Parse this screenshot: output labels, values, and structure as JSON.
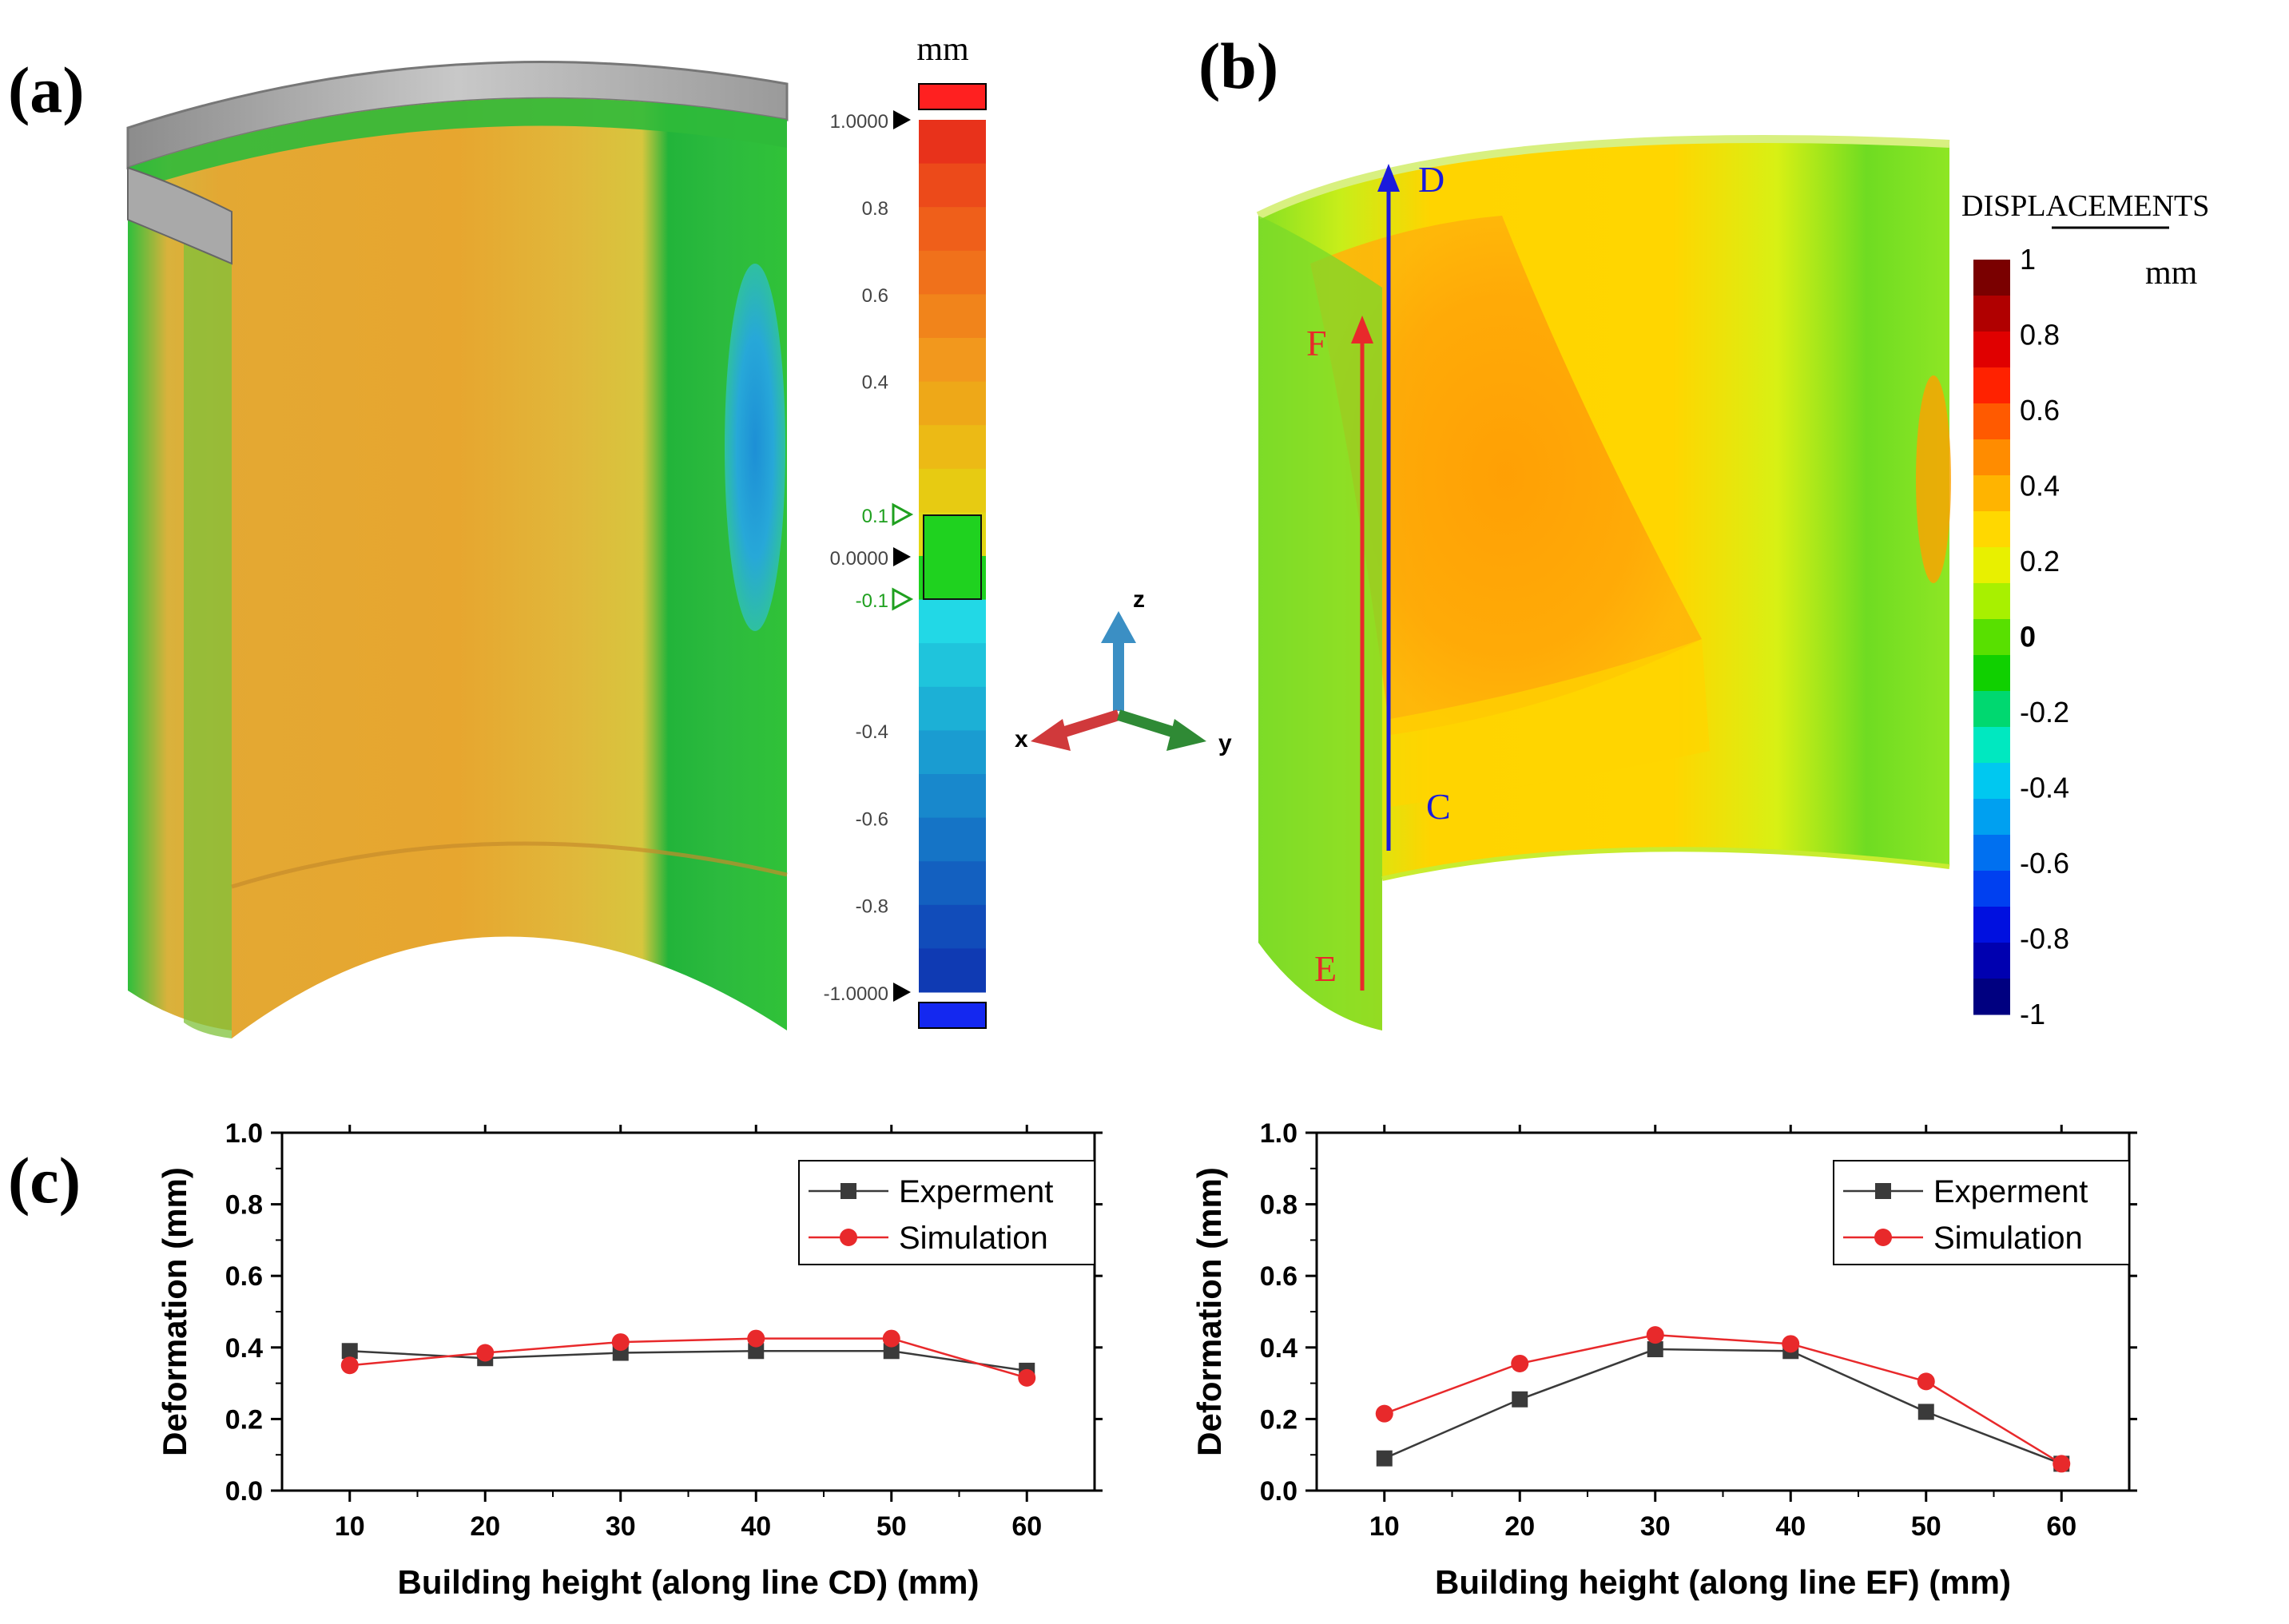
{
  "panels": {
    "a": "(a)",
    "b": "(b)",
    "c": "(c)"
  },
  "panel_a": {
    "unit": "mm",
    "scale_labels": [
      "1.0000",
      "0.8",
      "0.6",
      "0.4",
      "0.1",
      "0.0000",
      "-0.1",
      "-0.4",
      "-0.6",
      "-0.8",
      "-1.0000"
    ],
    "scale_colors": [
      "#e8321b",
      "#ec4a1a",
      "#ef5f1a",
      "#f0711b",
      "#f1841b",
      "#f2981d",
      "#eea818",
      "#ecba15",
      "#e7cb12",
      "#e2d714",
      "#1fd21f",
      "#22d8e6",
      "#1fc4dc",
      "#1cb0d6",
      "#1a9cd1",
      "#1888cc",
      "#1574c6",
      "#1360c0",
      "#114cba",
      "#0f3ab3"
    ],
    "over_color": "#ff2020",
    "under_color": "#1428f0"
  },
  "axes_triad": {
    "x": "x",
    "y": "y",
    "z": "z"
  },
  "panel_b": {
    "legend_title": "DISPLACEMENTS",
    "unit": "mm",
    "scale_labels": [
      "1",
      "0.8",
      "0.6",
      "0.4",
      "0.2",
      "0",
      "-0.2",
      "-0.4",
      "-0.6",
      "-0.8",
      "-1"
    ],
    "scale_colors": [
      "#7a0000",
      "#b00000",
      "#e00000",
      "#ff2200",
      "#ff5a00",
      "#ff8c00",
      "#ffb400",
      "#ffd800",
      "#e8f000",
      "#a8f000",
      "#58e000",
      "#10d000",
      "#00d870",
      "#00e8c0",
      "#00c8f0",
      "#00a0f0",
      "#0070f0",
      "#0040f0",
      "#0010e0",
      "#0000b0",
      "#000080"
    ],
    "line_labels": [
      "D",
      "C",
      "F",
      "E"
    ]
  },
  "chart_data": [
    {
      "type": "line",
      "xlabel": "Building height (along line CD) (mm)",
      "ylabel": "Deformation (mm)",
      "x": [
        10,
        20,
        30,
        40,
        50,
        60
      ],
      "xticks": [
        10,
        20,
        30,
        40,
        50,
        60
      ],
      "yticks": [
        "0.0",
        "0.2",
        "0.4",
        "0.6",
        "0.8",
        "1.0"
      ],
      "xlim": [
        5,
        65
      ],
      "ylim": [
        0,
        1.0
      ],
      "legend_position": "top-right",
      "series": [
        {
          "name": "Experment",
          "color": "#3a3a3a",
          "marker": "square",
          "values": [
            0.39,
            0.37,
            0.385,
            0.39,
            0.39,
            0.335
          ]
        },
        {
          "name": "Simulation",
          "color": "#e8292b",
          "marker": "circle",
          "values": [
            0.35,
            0.385,
            0.415,
            0.425,
            0.425,
            0.315
          ]
        }
      ]
    },
    {
      "type": "line",
      "xlabel": "Building height (along line EF) (mm)",
      "ylabel": "Deformation (mm)",
      "x": [
        10,
        20,
        30,
        40,
        50,
        60
      ],
      "xticks": [
        10,
        20,
        30,
        40,
        50,
        60
      ],
      "yticks": [
        "0.0",
        "0.2",
        "0.4",
        "0.6",
        "0.8",
        "1.0"
      ],
      "xlim": [
        5,
        65
      ],
      "ylim": [
        0,
        1.0
      ],
      "legend_position": "top-right",
      "series": [
        {
          "name": "Experment",
          "color": "#3a3a3a",
          "marker": "square",
          "values": [
            0.09,
            0.255,
            0.395,
            0.39,
            0.22,
            0.075
          ]
        },
        {
          "name": "Simulation",
          "color": "#e8292b",
          "marker": "circle",
          "values": [
            0.215,
            0.355,
            0.435,
            0.41,
            0.305,
            0.075
          ]
        }
      ]
    }
  ]
}
